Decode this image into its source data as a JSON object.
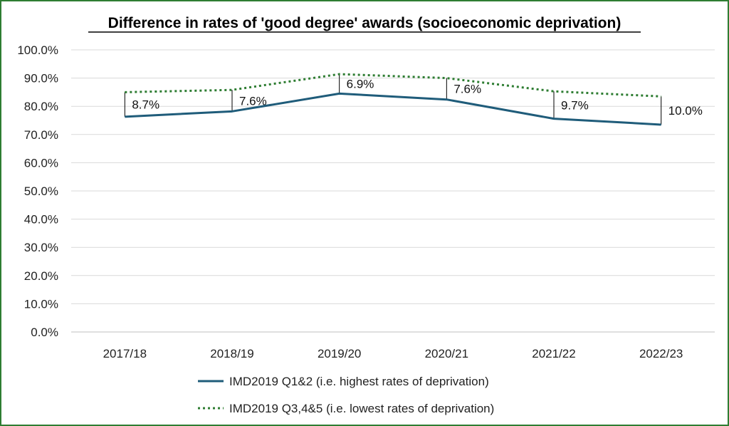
{
  "chart_data": {
    "type": "line",
    "title": "Difference in rates of 'good degree' awards (socioeconomic deprivation)",
    "categories": [
      "2017/18",
      "2018/19",
      "2019/20",
      "2020/21",
      "2021/22",
      "2022/23"
    ],
    "series": [
      {
        "name": "IMD2019 Q1&2 (i.e. highest rates of deprivation)",
        "values": [
          76.3,
          78.2,
          84.5,
          82.4,
          75.6,
          73.5
        ],
        "color": "#1f5c7a",
        "style": "solid"
      },
      {
        "name": "IMD2019 Q3,4&5 (i.e. lowest rates of deprivation)",
        "values": [
          85.0,
          85.8,
          91.4,
          90.0,
          85.3,
          83.5
        ],
        "color": "#2e7d32",
        "style": "dotted"
      }
    ],
    "difference_labels": [
      "8.7%",
      "7.6%",
      "6.9%",
      "7.6%",
      "9.7%",
      "10.0%"
    ],
    "ylim": [
      0,
      100
    ],
    "y_ticks": [
      "0.0%",
      "10.0%",
      "20.0%",
      "30.0%",
      "40.0%",
      "50.0%",
      "60.0%",
      "70.0%",
      "80.0%",
      "90.0%",
      "100.0%"
    ],
    "xlabel": "",
    "ylabel": "",
    "grid": true,
    "legend_position": "bottom"
  }
}
